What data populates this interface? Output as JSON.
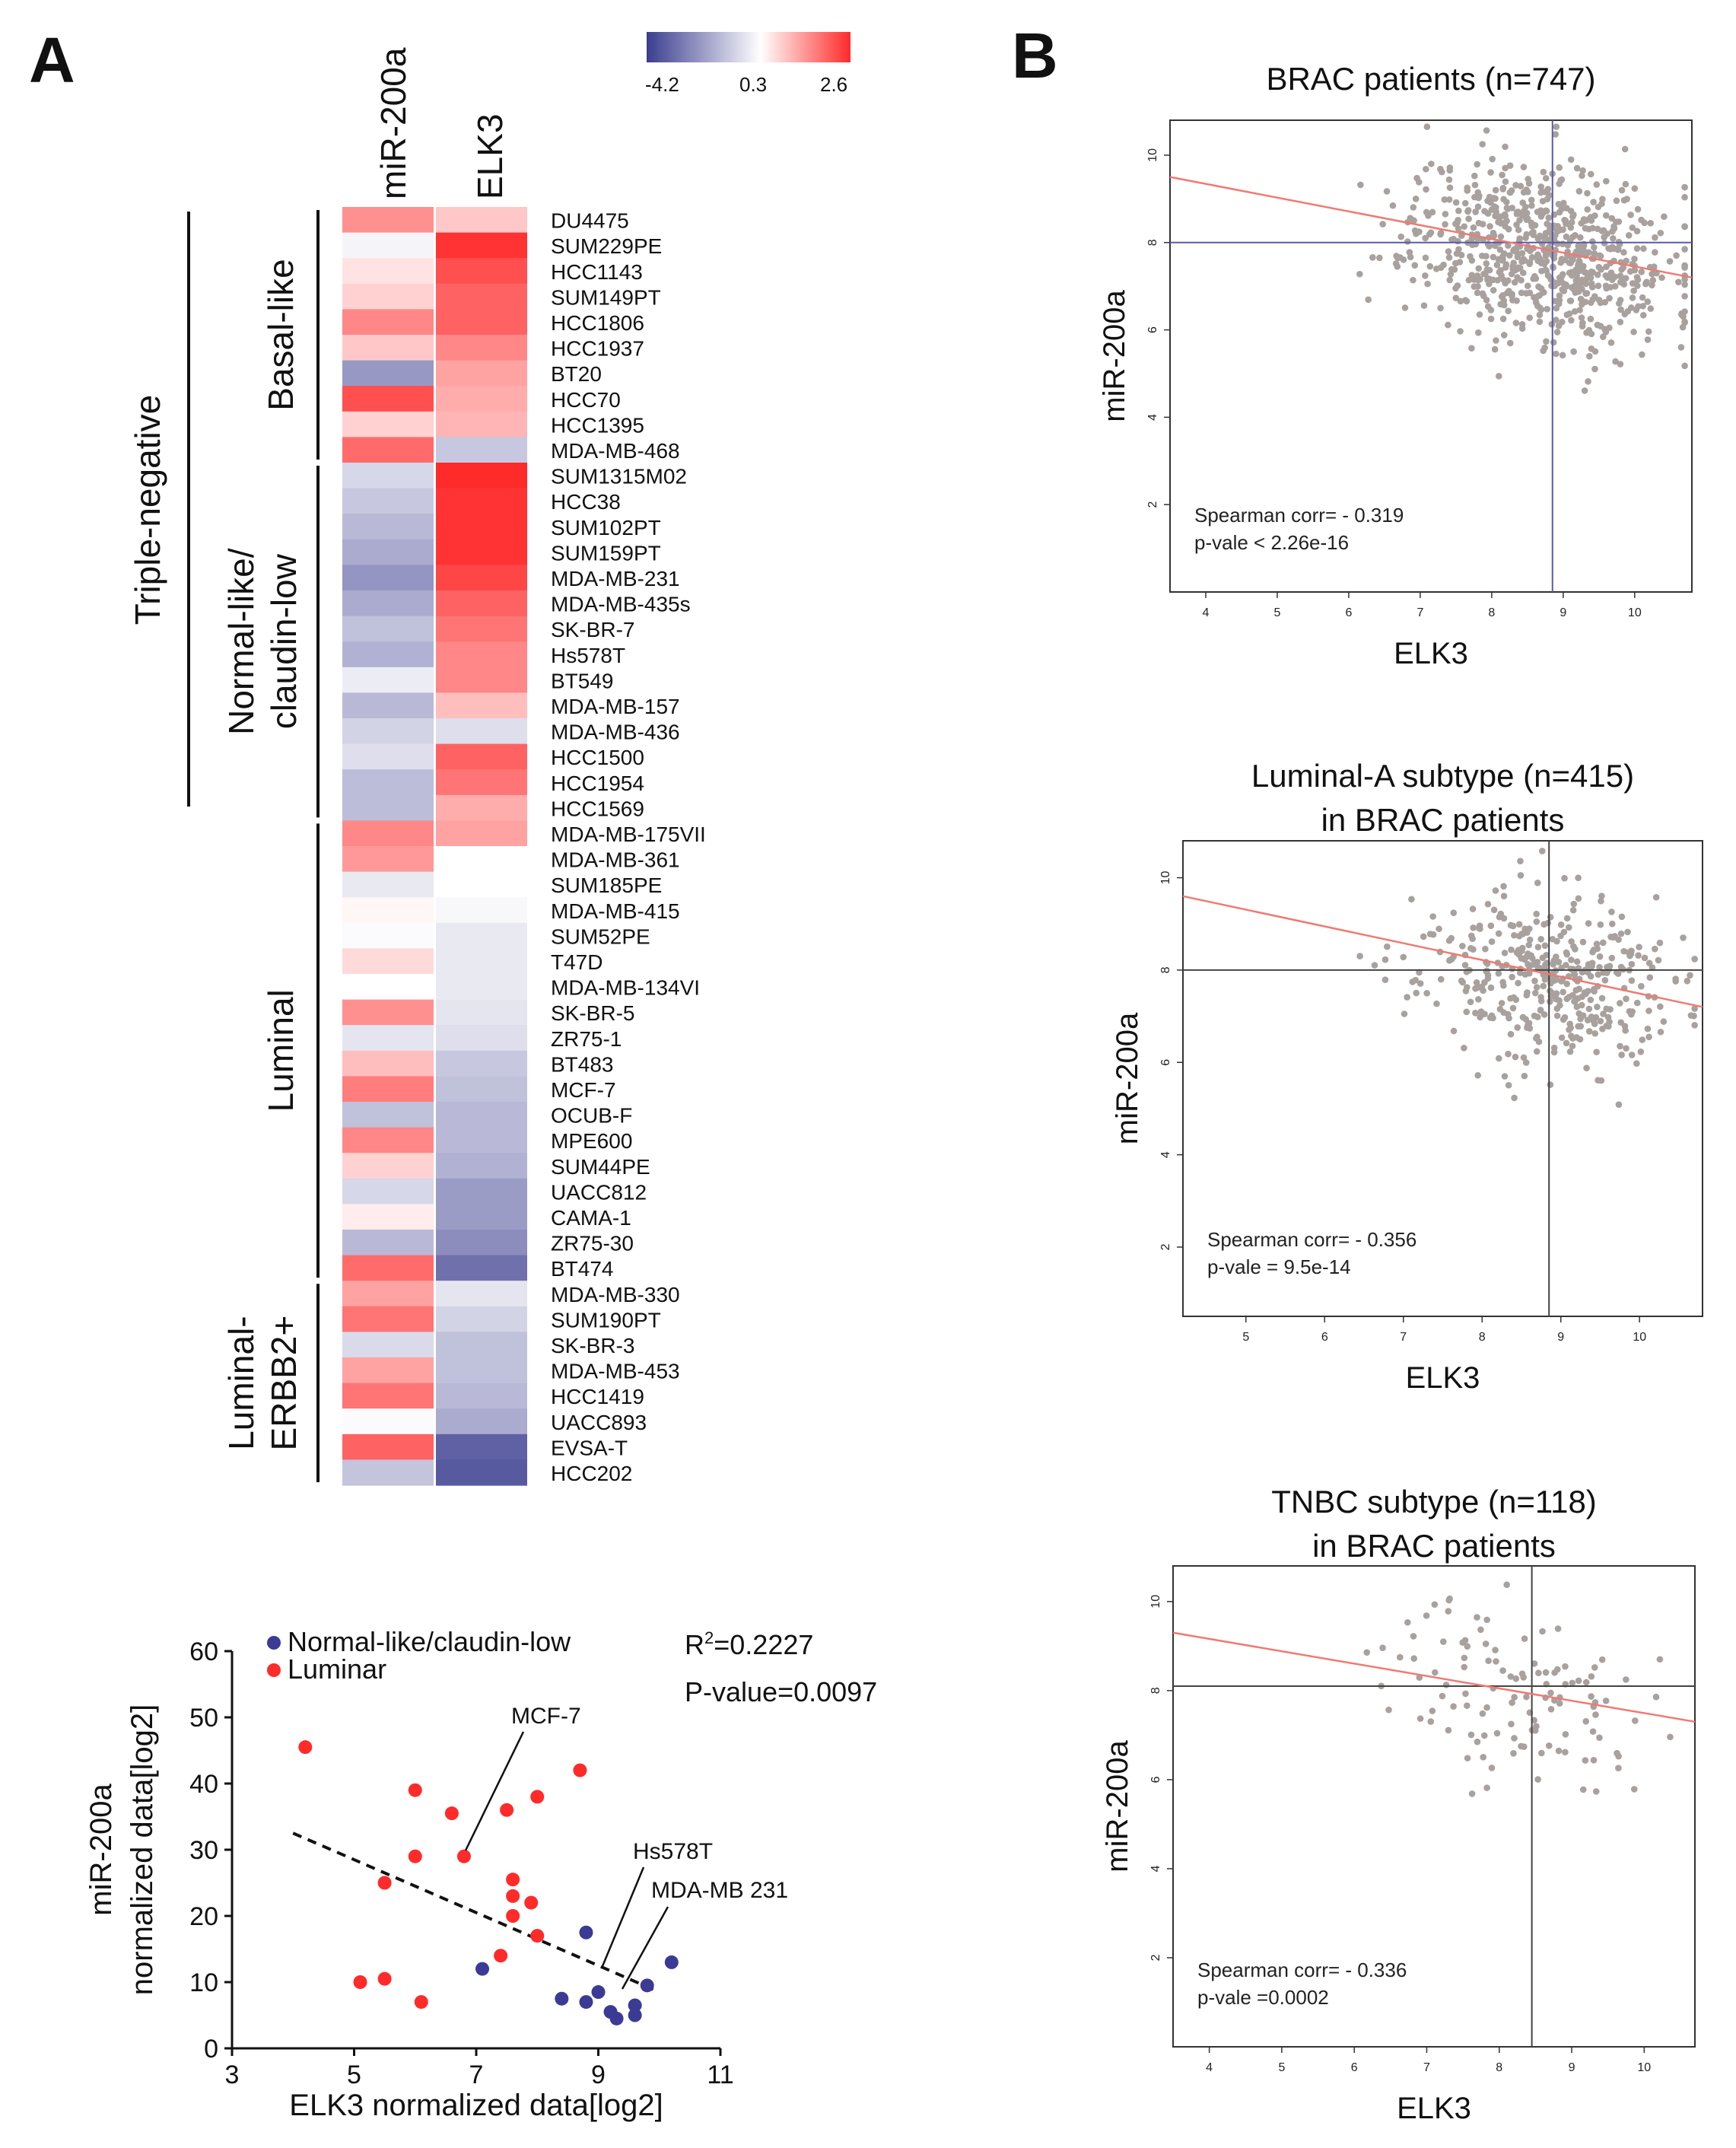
{
  "figure": {
    "panel_a": "A",
    "panel_b": "B"
  },
  "heatmap": {
    "columns": [
      "miR-200a",
      "ELK3"
    ],
    "legend": {
      "ticks": [
        "-4.2",
        "0.3",
        "2.6"
      ],
      "min": -4.2,
      "mid": 0.3,
      "max": 2.6,
      "colors": {
        "low": "#3b3d8f",
        "mid": "#ffffff",
        "high": "#ff2a2a"
      }
    },
    "outer_group": "Triple-negative",
    "groups": [
      {
        "lines": [
          "Basal-like"
        ]
      },
      {
        "lines": [
          "Normal-like/",
          "claudin-low"
        ]
      },
      {
        "lines": [
          "Luminal"
        ]
      },
      {
        "lines": [
          "Luminal-",
          "ERBB2+"
        ]
      }
    ],
    "rows": [
      {
        "label": "DU4475",
        "group": 0,
        "mir": 1.5,
        "elk": 0.9
      },
      {
        "label": "SUM229PE",
        "group": 0,
        "mir": 0.0,
        "elk": 2.5
      },
      {
        "label": "HCC1143",
        "group": 0,
        "mir": 0.6,
        "elk": 2.2
      },
      {
        "label": "SUM149PT",
        "group": 0,
        "mir": 0.8,
        "elk": 2.0
      },
      {
        "label": "HCC1806",
        "group": 0,
        "mir": 1.6,
        "elk": 2.0
      },
      {
        "label": "HCC1937",
        "group": 0,
        "mir": 0.9,
        "elk": 1.6
      },
      {
        "label": "BT20",
        "group": 0,
        "mir": -2.5,
        "elk": 1.3
      },
      {
        "label": "HCC70",
        "group": 0,
        "mir": 2.2,
        "elk": 1.2
      },
      {
        "label": "HCC1395",
        "group": 0,
        "mir": 0.8,
        "elk": 1.1
      },
      {
        "label": "MDA-MB-468",
        "group": 0,
        "mir": 1.9,
        "elk": -1.2
      },
      {
        "label": "SUM1315M02",
        "group": 1,
        "mir": -0.8,
        "elk": 2.6
      },
      {
        "label": "HCC38",
        "group": 1,
        "mir": -1.2,
        "elk": 2.5
      },
      {
        "label": "SUM102PT",
        "group": 1,
        "mir": -1.6,
        "elk": 2.5
      },
      {
        "label": "SUM159PT",
        "group": 1,
        "mir": -2.0,
        "elk": 2.5
      },
      {
        "label": "MDA-MB-231",
        "group": 1,
        "mir": -2.6,
        "elk": 2.3
      },
      {
        "label": "MDA-MB-435s",
        "group": 1,
        "mir": -2.0,
        "elk": 2.0
      },
      {
        "label": "SK-BR-7",
        "group": 1,
        "mir": -1.4,
        "elk": 1.8
      },
      {
        "label": "Hs578T",
        "group": 1,
        "mir": -1.8,
        "elk": 1.6
      },
      {
        "label": "BT549",
        "group": 1,
        "mir": -0.2,
        "elk": 1.6
      },
      {
        "label": "MDA-MB-157",
        "group": 1,
        "mir": -1.6,
        "elk": 1.0
      },
      {
        "label": "MDA-MB-436",
        "group": 1,
        "mir": -0.9,
        "elk": -0.6
      },
      {
        "label": "HCC1500",
        "group": 1,
        "mir": -0.6,
        "elk": 2.0
      },
      {
        "label": "HCC1954",
        "group": 1,
        "mir": -1.5,
        "elk": 1.8
      },
      {
        "label": "HCC1569",
        "group": 1,
        "mir": -1.5,
        "elk": 1.2
      },
      {
        "label": "MDA-MB-175VII",
        "group": 2,
        "mir": 1.6,
        "elk": 1.3
      },
      {
        "label": "MDA-MB-361",
        "group": 2,
        "mir": 1.4,
        "elk": 0.3
      },
      {
        "label": "SUM185PE",
        "group": 2,
        "mir": -0.3,
        "elk": 0.3
      },
      {
        "label": "MDA-MB-415",
        "group": 2,
        "mir": 0.4,
        "elk": 0.1
      },
      {
        "label": "SUM52PE",
        "group": 2,
        "mir": 0.2,
        "elk": -0.3
      },
      {
        "label": "T47D",
        "group": 2,
        "mir": 0.7,
        "elk": -0.3
      },
      {
        "label": "MDA-MB-134VI",
        "group": 2,
        "mir": 0.3,
        "elk": -0.3
      },
      {
        "label": "SK-BR-5",
        "group": 2,
        "mir": 1.5,
        "elk": -0.4
      },
      {
        "label": "ZR75-1",
        "group": 2,
        "mir": -0.4,
        "elk": -0.6
      },
      {
        "label": "BT483",
        "group": 2,
        "mir": 1.0,
        "elk": -1.2
      },
      {
        "label": "MCF-7",
        "group": 2,
        "mir": 1.7,
        "elk": -1.4
      },
      {
        "label": "OCUB-F",
        "group": 2,
        "mir": -1.4,
        "elk": -1.6
      },
      {
        "label": "MPE600",
        "group": 2,
        "mir": 1.6,
        "elk": -1.6
      },
      {
        "label": "SUM44PE",
        "group": 2,
        "mir": 0.8,
        "elk": -1.8
      },
      {
        "label": "UACC812",
        "group": 2,
        "mir": -0.8,
        "elk": -2.4
      },
      {
        "label": "CAMA-1",
        "group": 2,
        "mir": 0.5,
        "elk": -2.4
      },
      {
        "label": "ZR75-30",
        "group": 2,
        "mir": -1.6,
        "elk": -2.8
      },
      {
        "label": "BT474",
        "group": 2,
        "mir": 1.9,
        "elk": -3.6
      },
      {
        "label": "MDA-MB-330",
        "group": 3,
        "mir": 1.3,
        "elk": -0.4
      },
      {
        "label": "SUM190PT",
        "group": 3,
        "mir": 1.8,
        "elk": -0.9
      },
      {
        "label": "SK-BR-3",
        "group": 3,
        "mir": -0.7,
        "elk": -1.4
      },
      {
        "label": "MDA-MB-453",
        "group": 3,
        "mir": 1.3,
        "elk": -1.4
      },
      {
        "label": "HCC1419",
        "group": 3,
        "mir": 1.8,
        "elk": -1.6
      },
      {
        "label": "UACC893",
        "group": 3,
        "mir": 0.2,
        "elk": -2.0
      },
      {
        "label": "EVSA-T",
        "group": 3,
        "mir": 2.0,
        "elk": -4.0
      },
      {
        "label": "HCC202",
        "group": 3,
        "mir": -1.3,
        "elk": -4.2
      }
    ]
  },
  "scatter_a": {
    "legend": [
      "Normal-like/claudin-low",
      "Luminar"
    ],
    "stats": {
      "r2_prefix": "R",
      "r2_sup": "2",
      "r2_value": "=0.2227",
      "p": "P-value=0.0097"
    },
    "xlabel": "ELK3 normalized data[log2]",
    "ylabel_lines": [
      "miR-200a",
      "normalized data[log2]"
    ],
    "callouts": [
      "MCF-7",
      "Hs578T",
      "MDA-MB 231"
    ]
  },
  "chart_data": [
    {
      "type": "scatter",
      "title": "",
      "xlabel": "ELK3 normalized data[log2]",
      "ylabel": "miR-200a normalized data[log2]",
      "xlim": [
        3,
        11
      ],
      "ylim": [
        0,
        60
      ],
      "xticks": [
        3,
        5,
        7,
        9,
        11
      ],
      "yticks": [
        0,
        10,
        20,
        30,
        40,
        50,
        60
      ],
      "trendline": {
        "x": [
          4.0,
          10.0
        ],
        "y": [
          32.5,
          8.5
        ],
        "style": "dashed"
      },
      "series": [
        {
          "name": "Normal-like/claudin-low",
          "color": "#3b3b95",
          "points": [
            [
              7.1,
              12
            ],
            [
              8.4,
              7.5
            ],
            [
              8.8,
              17.5
            ],
            [
              8.8,
              7
            ],
            [
              9.0,
              8.5
            ],
            [
              9.2,
              5.5
            ],
            [
              9.3,
              4.5
            ],
            [
              9.6,
              6.5
            ],
            [
              9.6,
              5
            ],
            [
              9.8,
              9.5
            ],
            [
              10.2,
              13
            ]
          ]
        },
        {
          "name": "Luminar",
          "color": "#ff2a2a",
          "points": [
            [
              4.2,
              45.5
            ],
            [
              5.1,
              10
            ],
            [
              5.5,
              25
            ],
            [
              5.5,
              10.5
            ],
            [
              6.0,
              39
            ],
            [
              6.0,
              29
            ],
            [
              6.1,
              7
            ],
            [
              6.6,
              35.5
            ],
            [
              6.8,
              29
            ],
            [
              7.4,
              14
            ],
            [
              7.5,
              36
            ],
            [
              7.6,
              25.5
            ],
            [
              7.6,
              23
            ],
            [
              7.6,
              20
            ],
            [
              7.9,
              22
            ],
            [
              8.0,
              38
            ],
            [
              8.0,
              17
            ],
            [
              8.7,
              42
            ]
          ]
        }
      ]
    },
    {
      "type": "scatter",
      "title": "BRAC patients (n=747)",
      "xlabel": "ELK3",
      "ylabel": "miR-200a",
      "xlim": [
        3.5,
        10.8
      ],
      "ylim": [
        0,
        10.8
      ],
      "xticks": [
        4,
        5,
        6,
        7,
        8,
        9,
        10
      ],
      "yticks": [
        2,
        4,
        6,
        8,
        10
      ],
      "hline": 8.0,
      "vline": 8.85,
      "fit": {
        "x": [
          3.5,
          10.8
        ],
        "y": [
          9.5,
          7.2
        ]
      },
      "annotations": [
        "Spearman corr= - 0.319",
        "p-vale < 2.26e-16"
      ],
      "n_points": 747,
      "seed": 11,
      "center": [
        8.7,
        7.8
      ],
      "spread": [
        0.9,
        1.0
      ]
    },
    {
      "type": "scatter",
      "title": "Luminal-A subtype (n=415)",
      "title_line2": "in BRAC patients",
      "xlabel": "ELK3",
      "ylabel": "miR-200a",
      "xlim": [
        4.2,
        10.8
      ],
      "ylim": [
        0.5,
        10.8
      ],
      "xticks": [
        5,
        6,
        7,
        8,
        9,
        10
      ],
      "yticks": [
        2,
        4,
        6,
        8,
        10
      ],
      "hline": 8.0,
      "vline": 8.85,
      "fit": {
        "x": [
          4.2,
          10.8
        ],
        "y": [
          9.6,
          7.2
        ]
      },
      "annotations": [
        "Spearman corr= - 0.356",
        "p-vale = 9.5e-14"
      ],
      "n_points": 415,
      "seed": 23,
      "center": [
        8.8,
        7.8
      ],
      "spread": [
        0.8,
        0.9
      ]
    },
    {
      "type": "scatter",
      "title": "TNBC subtype (n=118)",
      "title_line2": "in BRAC patients",
      "xlabel": "ELK3",
      "ylabel": "miR-200a",
      "xlim": [
        3.5,
        10.7
      ],
      "ylim": [
        0,
        10.8
      ],
      "xticks": [
        4,
        5,
        6,
        7,
        8,
        9,
        10
      ],
      "yticks": [
        2,
        4,
        6,
        8,
        10
      ],
      "hline": 8.1,
      "vline": 8.45,
      "fit": {
        "x": [
          3.5,
          10.7
        ],
        "y": [
          9.3,
          7.3
        ]
      },
      "annotations": [
        "Spearman corr= - 0.336",
        "p-vale =0.0002"
      ],
      "n_points": 118,
      "seed": 37,
      "center": [
        8.3,
        7.9
      ],
      "spread": [
        0.9,
        1.0
      ]
    }
  ]
}
